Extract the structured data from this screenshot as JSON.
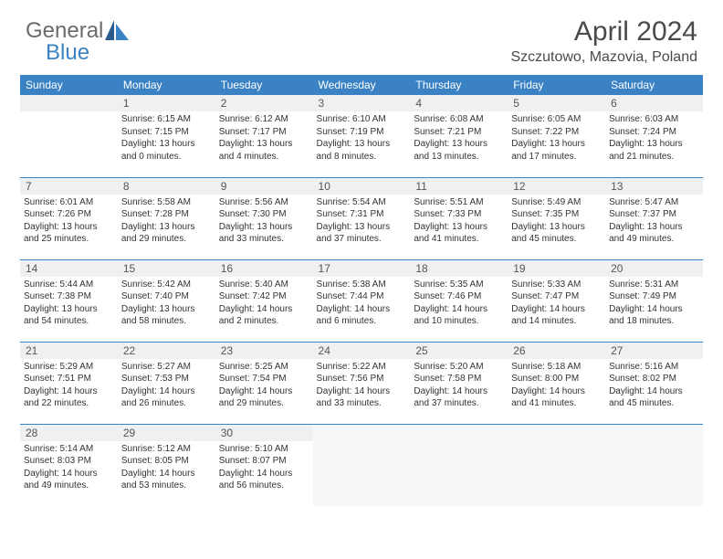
{
  "logo": {
    "general": "General",
    "blue": "Blue"
  },
  "title": "April 2024",
  "location": "Szczutowo, Mazovia, Poland",
  "colors": {
    "header_bg": "#3b82c4",
    "header_text": "#ffffff",
    "daynum_bg": "#eef0f2",
    "border": "#3b82c4",
    "logo_gray": "#6b6b6b",
    "logo_blue": "#3b82c4"
  },
  "days_of_week": [
    "Sunday",
    "Monday",
    "Tuesday",
    "Wednesday",
    "Thursday",
    "Friday",
    "Saturday"
  ],
  "weeks": [
    [
      null,
      {
        "n": "1",
        "sr": "Sunrise: 6:15 AM",
        "ss": "Sunset: 7:15 PM",
        "d1": "Daylight: 13 hours",
        "d2": "and 0 minutes."
      },
      {
        "n": "2",
        "sr": "Sunrise: 6:12 AM",
        "ss": "Sunset: 7:17 PM",
        "d1": "Daylight: 13 hours",
        "d2": "and 4 minutes."
      },
      {
        "n": "3",
        "sr": "Sunrise: 6:10 AM",
        "ss": "Sunset: 7:19 PM",
        "d1": "Daylight: 13 hours",
        "d2": "and 8 minutes."
      },
      {
        "n": "4",
        "sr": "Sunrise: 6:08 AM",
        "ss": "Sunset: 7:21 PM",
        "d1": "Daylight: 13 hours",
        "d2": "and 13 minutes."
      },
      {
        "n": "5",
        "sr": "Sunrise: 6:05 AM",
        "ss": "Sunset: 7:22 PM",
        "d1": "Daylight: 13 hours",
        "d2": "and 17 minutes."
      },
      {
        "n": "6",
        "sr": "Sunrise: 6:03 AM",
        "ss": "Sunset: 7:24 PM",
        "d1": "Daylight: 13 hours",
        "d2": "and 21 minutes."
      }
    ],
    [
      {
        "n": "7",
        "sr": "Sunrise: 6:01 AM",
        "ss": "Sunset: 7:26 PM",
        "d1": "Daylight: 13 hours",
        "d2": "and 25 minutes."
      },
      {
        "n": "8",
        "sr": "Sunrise: 5:58 AM",
        "ss": "Sunset: 7:28 PM",
        "d1": "Daylight: 13 hours",
        "d2": "and 29 minutes."
      },
      {
        "n": "9",
        "sr": "Sunrise: 5:56 AM",
        "ss": "Sunset: 7:30 PM",
        "d1": "Daylight: 13 hours",
        "d2": "and 33 minutes."
      },
      {
        "n": "10",
        "sr": "Sunrise: 5:54 AM",
        "ss": "Sunset: 7:31 PM",
        "d1": "Daylight: 13 hours",
        "d2": "and 37 minutes."
      },
      {
        "n": "11",
        "sr": "Sunrise: 5:51 AM",
        "ss": "Sunset: 7:33 PM",
        "d1": "Daylight: 13 hours",
        "d2": "and 41 minutes."
      },
      {
        "n": "12",
        "sr": "Sunrise: 5:49 AM",
        "ss": "Sunset: 7:35 PM",
        "d1": "Daylight: 13 hours",
        "d2": "and 45 minutes."
      },
      {
        "n": "13",
        "sr": "Sunrise: 5:47 AM",
        "ss": "Sunset: 7:37 PM",
        "d1": "Daylight: 13 hours",
        "d2": "and 49 minutes."
      }
    ],
    [
      {
        "n": "14",
        "sr": "Sunrise: 5:44 AM",
        "ss": "Sunset: 7:38 PM",
        "d1": "Daylight: 13 hours",
        "d2": "and 54 minutes."
      },
      {
        "n": "15",
        "sr": "Sunrise: 5:42 AM",
        "ss": "Sunset: 7:40 PM",
        "d1": "Daylight: 13 hours",
        "d2": "and 58 minutes."
      },
      {
        "n": "16",
        "sr": "Sunrise: 5:40 AM",
        "ss": "Sunset: 7:42 PM",
        "d1": "Daylight: 14 hours",
        "d2": "and 2 minutes."
      },
      {
        "n": "17",
        "sr": "Sunrise: 5:38 AM",
        "ss": "Sunset: 7:44 PM",
        "d1": "Daylight: 14 hours",
        "d2": "and 6 minutes."
      },
      {
        "n": "18",
        "sr": "Sunrise: 5:35 AM",
        "ss": "Sunset: 7:46 PM",
        "d1": "Daylight: 14 hours",
        "d2": "and 10 minutes."
      },
      {
        "n": "19",
        "sr": "Sunrise: 5:33 AM",
        "ss": "Sunset: 7:47 PM",
        "d1": "Daylight: 14 hours",
        "d2": "and 14 minutes."
      },
      {
        "n": "20",
        "sr": "Sunrise: 5:31 AM",
        "ss": "Sunset: 7:49 PM",
        "d1": "Daylight: 14 hours",
        "d2": "and 18 minutes."
      }
    ],
    [
      {
        "n": "21",
        "sr": "Sunrise: 5:29 AM",
        "ss": "Sunset: 7:51 PM",
        "d1": "Daylight: 14 hours",
        "d2": "and 22 minutes."
      },
      {
        "n": "22",
        "sr": "Sunrise: 5:27 AM",
        "ss": "Sunset: 7:53 PM",
        "d1": "Daylight: 14 hours",
        "d2": "and 26 minutes."
      },
      {
        "n": "23",
        "sr": "Sunrise: 5:25 AM",
        "ss": "Sunset: 7:54 PM",
        "d1": "Daylight: 14 hours",
        "d2": "and 29 minutes."
      },
      {
        "n": "24",
        "sr": "Sunrise: 5:22 AM",
        "ss": "Sunset: 7:56 PM",
        "d1": "Daylight: 14 hours",
        "d2": "and 33 minutes."
      },
      {
        "n": "25",
        "sr": "Sunrise: 5:20 AM",
        "ss": "Sunset: 7:58 PM",
        "d1": "Daylight: 14 hours",
        "d2": "and 37 minutes."
      },
      {
        "n": "26",
        "sr": "Sunrise: 5:18 AM",
        "ss": "Sunset: 8:00 PM",
        "d1": "Daylight: 14 hours",
        "d2": "and 41 minutes."
      },
      {
        "n": "27",
        "sr": "Sunrise: 5:16 AM",
        "ss": "Sunset: 8:02 PM",
        "d1": "Daylight: 14 hours",
        "d2": "and 45 minutes."
      }
    ],
    [
      {
        "n": "28",
        "sr": "Sunrise: 5:14 AM",
        "ss": "Sunset: 8:03 PM",
        "d1": "Daylight: 14 hours",
        "d2": "and 49 minutes."
      },
      {
        "n": "29",
        "sr": "Sunrise: 5:12 AM",
        "ss": "Sunset: 8:05 PM",
        "d1": "Daylight: 14 hours",
        "d2": "and 53 minutes."
      },
      {
        "n": "30",
        "sr": "Sunrise: 5:10 AM",
        "ss": "Sunset: 8:07 PM",
        "d1": "Daylight: 14 hours",
        "d2": "and 56 minutes."
      },
      {
        "trailing": true
      },
      {
        "trailing": true
      },
      {
        "trailing": true
      },
      {
        "trailing": true
      }
    ]
  ]
}
